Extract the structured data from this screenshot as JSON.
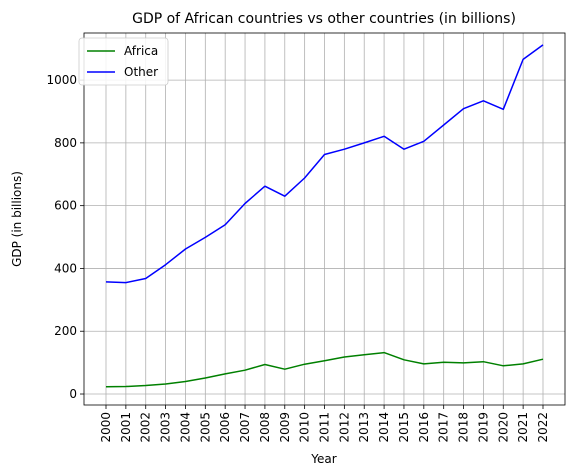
{
  "chart_data": {
    "type": "line",
    "title": "GDP of African countries vs other countries (in billions)",
    "xlabel": "Year",
    "ylabel": "GDP (in billions)",
    "x": [
      "2000",
      "2001",
      "2002",
      "2003",
      "2004",
      "2005",
      "2006",
      "2007",
      "2008",
      "2009",
      "2010",
      "2011",
      "2012",
      "2013",
      "2014",
      "2015",
      "2016",
      "2017",
      "2018",
      "2019",
      "2020",
      "2021",
      "2022"
    ],
    "yticks": [
      0,
      200,
      400,
      600,
      800,
      1000
    ],
    "ylim": [
      -35,
      1150
    ],
    "grid": true,
    "legend_position": "top-left",
    "series": [
      {
        "name": "Africa",
        "color": "#008000",
        "values": [
          23,
          24,
          27,
          32,
          40,
          51,
          64,
          76,
          94,
          79,
          95,
          106,
          118,
          125,
          132,
          109,
          96,
          101,
          99,
          103,
          90,
          96,
          111
        ]
      },
      {
        "name": "Other",
        "color": "#0000ff",
        "values": [
          357,
          355,
          368,
          412,
          462,
          499,
          539,
          607,
          662,
          630,
          688,
          763,
          780,
          800,
          821,
          780,
          805,
          857,
          909,
          934,
          907,
          1066,
          1112
        ]
      }
    ]
  }
}
